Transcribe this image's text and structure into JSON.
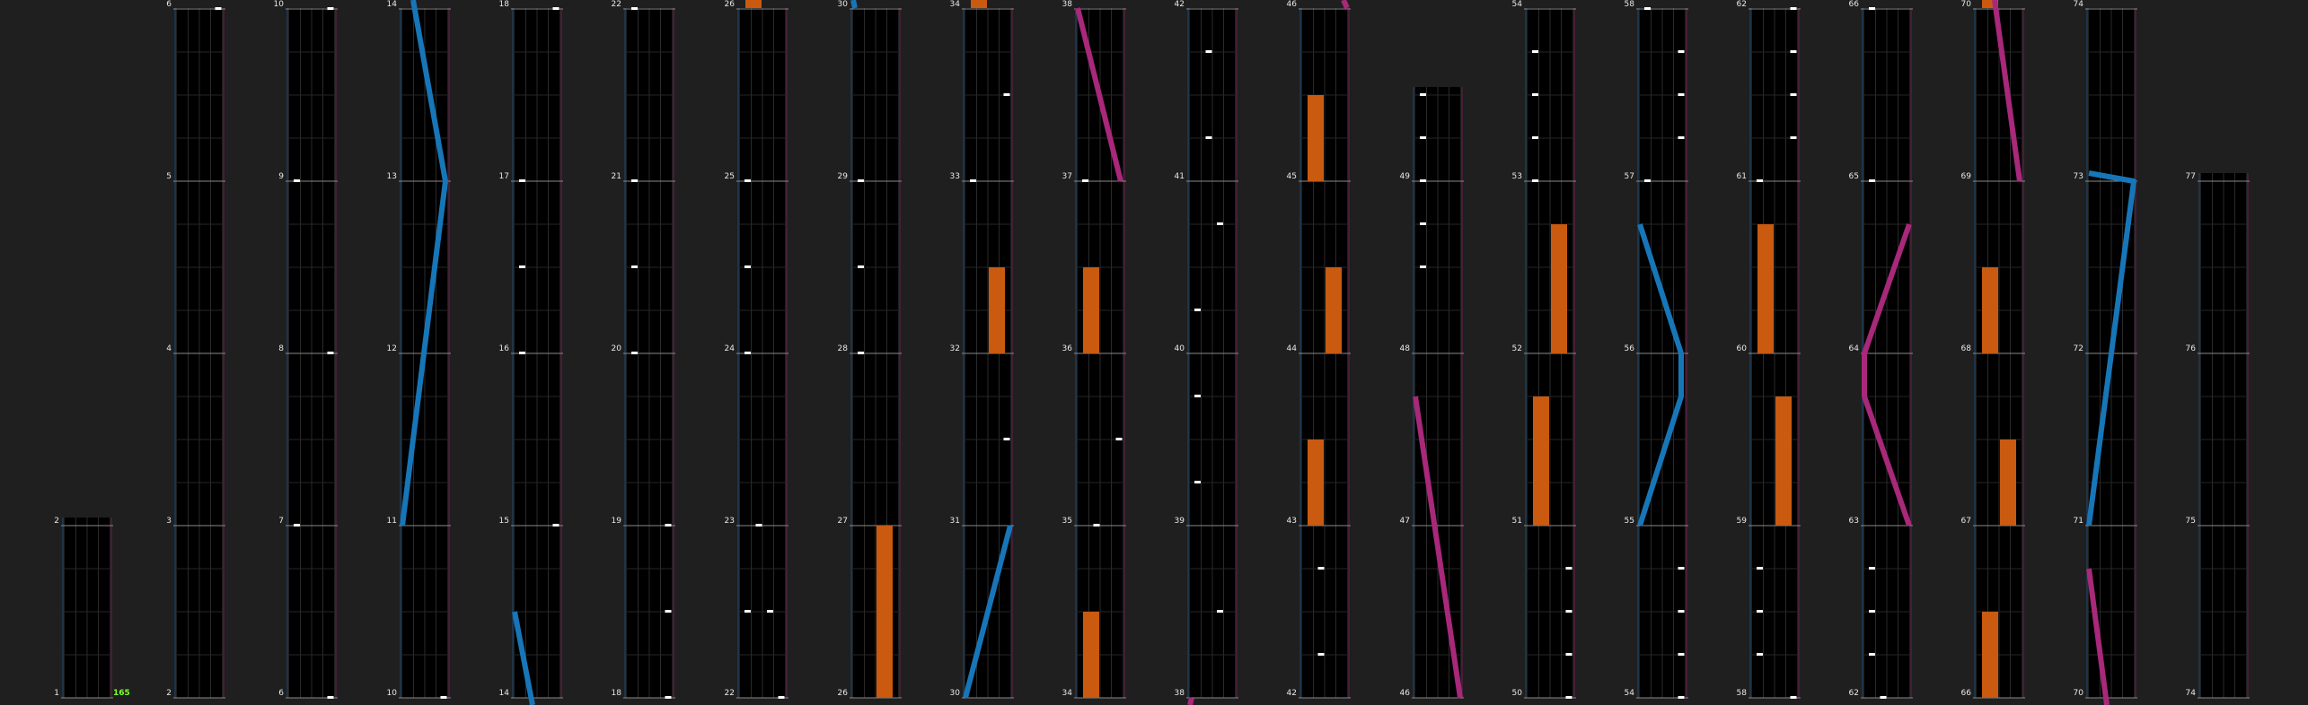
{
  "view": "chart-overview",
  "bpm_marker": {
    "measure": 1,
    "value": "165"
  },
  "colors": {
    "background": "#1f1f1f",
    "lane": "#000000",
    "left_laser": "#1776b8",
    "right_laser": "#a8287a",
    "fx_hold": "#c95a10",
    "bt_chip": "#ffffff",
    "bpm_text": "#7dff2a"
  },
  "columns": [
    {
      "measures": [
        1,
        2
      ]
    },
    {
      "measures": [
        2,
        3,
        4,
        5,
        6
      ]
    },
    {
      "measures": [
        6,
        7,
        8,
        9,
        10
      ]
    },
    {
      "measures": [
        10,
        11,
        12,
        13,
        14
      ]
    },
    {
      "measures": [
        14,
        15,
        16,
        17,
        18
      ]
    },
    {
      "measures": [
        18,
        19,
        20,
        21,
        22
      ]
    },
    {
      "measures": [
        22,
        23,
        24,
        25,
        26
      ]
    },
    {
      "measures": [
        26,
        27,
        28,
        29,
        30
      ]
    },
    {
      "measures": [
        30,
        31,
        32,
        33,
        34
      ]
    },
    {
      "measures": [
        34,
        35,
        36,
        37,
        38
      ]
    },
    {
      "measures": [
        38,
        39,
        40,
        41,
        42
      ]
    },
    {
      "measures": [
        42,
        43,
        44,
        45,
        46
      ]
    },
    {
      "measures": [
        46,
        47,
        48,
        49,
        50
      ]
    },
    {
      "measures": [
        50,
        51,
        52,
        53,
        54
      ]
    },
    {
      "measures": [
        54,
        55,
        56,
        57,
        58
      ]
    },
    {
      "measures": [
        58,
        59,
        60,
        61,
        62
      ]
    },
    {
      "measures": [
        62,
        63,
        64,
        65,
        66
      ]
    },
    {
      "measures": [
        66,
        67,
        68,
        69,
        70
      ]
    },
    {
      "measures": [
        70,
        71,
        72,
        73,
        74
      ]
    },
    {
      "measures": [
        74,
        75,
        76,
        77
      ]
    }
  ]
}
